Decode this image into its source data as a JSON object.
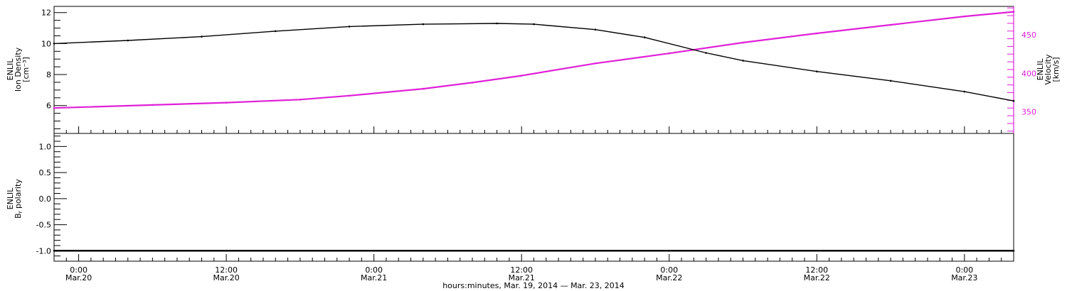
{
  "colors": {
    "density": "#000000",
    "velocity": "#e020d8",
    "polarity": "#000000"
  },
  "xlabel": "hours:minutes, Mar. 19, 2014 — Mar. 23, 2014",
  "x_ticks": [
    {
      "t": 0,
      "time": "0:00",
      "date": "Mar.20"
    },
    {
      "t": 12,
      "time": "12:00",
      "date": "Mar.20"
    },
    {
      "t": 24,
      "time": "0:00",
      "date": "Mar.21"
    },
    {
      "t": 36,
      "time": "12:00",
      "date": "Mar.21"
    },
    {
      "t": 48,
      "time": "0:00",
      "date": "Mar.22"
    },
    {
      "t": 60,
      "time": "12:00",
      "date": "Mar.22"
    },
    {
      "t": 72,
      "time": "0:00",
      "date": "Mar.23"
    }
  ],
  "chart_data": [
    {
      "type": "line",
      "xlabel": "hours:minutes, Mar. 19, 2014 — Mar. 23, 2014",
      "xlim": [
        "Mar.19 22:00",
        "Mar.23 04:00"
      ],
      "ylabel_left": [
        "ENLIL",
        "Ion Density",
        "[cm⁻³]"
      ],
      "ylabel_right": [
        "ENLIL",
        "Velocity",
        "[km/s]"
      ],
      "ylim_left": [
        4.2,
        12.4
      ],
      "ylim_right": [
        322,
        487
      ],
      "y_ticks_left": [
        "6",
        "8",
        "10",
        "12"
      ],
      "y_ticks_right": [
        "350",
        "400",
        "450"
      ],
      "grid": false,
      "series": [
        {
          "axis": "left",
          "x": [
            "Mar.19 22:00",
            "Mar.20 04:00",
            "Mar.20 10:00",
            "Mar.20 16:00",
            "Mar.20 22:00",
            "Mar.21 04:00",
            "Mar.21 10:00",
            "Mar.21 13:00",
            "Mar.21 18:00",
            "Mar.21 22:00",
            "Mar.22 03:00",
            "Mar.22 06:00",
            "Mar.22 12:00",
            "Mar.22 18:00",
            "Mar.23 00:00",
            "Mar.23 04:00"
          ],
          "values": [
            10.0,
            10.2,
            10.45,
            10.8,
            11.1,
            11.25,
            11.3,
            11.25,
            10.9,
            10.4,
            9.4,
            8.9,
            8.2,
            7.6,
            6.9,
            6.3
          ]
        },
        {
          "axis": "right",
          "x": [
            "Mar.19 22:00",
            "Mar.20 06:00",
            "Mar.20 12:00",
            "Mar.20 18:00",
            "Mar.20 22:00",
            "Mar.21 04:00",
            "Mar.21 08:00",
            "Mar.21 12:00",
            "Mar.21 18:00",
            "Mar.22 00:00",
            "Mar.22 06:00",
            "Mar.22 12:00",
            "Mar.22 18:00",
            "Mar.23 00:00",
            "Mar.23 04:00"
          ],
          "values": [
            355,
            359,
            362,
            366,
            371,
            380,
            388,
            397,
            413,
            426,
            440,
            452,
            463,
            474,
            480
          ]
        }
      ]
    },
    {
      "type": "line",
      "xlabel": "hours:minutes, Mar. 19, 2014 — Mar. 23, 2014",
      "xlim": [
        "Mar.19 22:00",
        "Mar.23 04:00"
      ],
      "ylabel": [
        "ENLIL",
        "B",
        "polarity"
      ],
      "ylabel_sub": "r",
      "ylim": [
        -1.2,
        1.25
      ],
      "y_ticks": [
        "-1.0",
        "-0.5",
        "0.0",
        "0.5",
        "1.0"
      ],
      "grid": false,
      "series": [
        {
          "x": [
            "Mar.19 22:00",
            "Mar.23 04:00"
          ],
          "values": [
            -1.0,
            -1.0
          ]
        }
      ]
    }
  ]
}
